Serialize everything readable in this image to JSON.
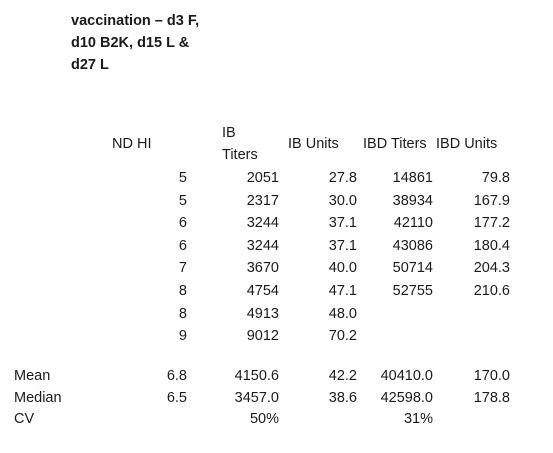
{
  "title": "vaccination – d3 F,\nd10 B2K, d15 L &\nd27 L",
  "headers": {
    "nd_hi": "ND  HI",
    "ib_titers_line1": "IB",
    "ib_titers_line2": "Titers",
    "ib_units": "IB Units",
    "ibd_titers": "IBD Titers",
    "ibd_units": "IBD Units"
  },
  "rows": [
    {
      "hi": "5",
      "ib_titers": "2051",
      "ib_units": "27.8",
      "ibd_titers": "14861",
      "ibd_units": "79.8"
    },
    {
      "hi": "5",
      "ib_titers": "2317",
      "ib_units": "30.0",
      "ibd_titers": "38934",
      "ibd_units": "167.9"
    },
    {
      "hi": "6",
      "ib_titers": "3244",
      "ib_units": "37.1",
      "ibd_titers": "42110",
      "ibd_units": "177.2"
    },
    {
      "hi": "6",
      "ib_titers": "3244",
      "ib_units": "37.1",
      "ibd_titers": "43086",
      "ibd_units": "180.4"
    },
    {
      "hi": "7",
      "ib_titers": "3670",
      "ib_units": "40.0",
      "ibd_titers": "50714",
      "ibd_units": "204.3"
    },
    {
      "hi": "8",
      "ib_titers": "4754",
      "ib_units": "47.1",
      "ibd_titers": "52755",
      "ibd_units": "210.6"
    },
    {
      "hi": "8",
      "ib_titers": "4913",
      "ib_units": "48.0",
      "ibd_titers": "",
      "ibd_units": ""
    },
    {
      "hi": "9",
      "ib_titers": "9012",
      "ib_units": "70.2",
      "ibd_titers": "",
      "ibd_units": ""
    }
  ],
  "summary": [
    {
      "label": "Mean",
      "hi": "6.8",
      "ib_titers": "4150.6",
      "ib_units": "42.2",
      "ibd_titers": "40410.0",
      "ibd_units": "170.0"
    },
    {
      "label": "Median",
      "hi": "6.5",
      "ib_titers": "3457.0",
      "ib_units": "38.6",
      "ibd_titers": "42598.0",
      "ibd_units": "178.8"
    },
    {
      "label": "CV",
      "hi": "",
      "ib_titers": "50%",
      "ib_units": "",
      "ibd_titers": "31%",
      "ibd_units": ""
    }
  ]
}
